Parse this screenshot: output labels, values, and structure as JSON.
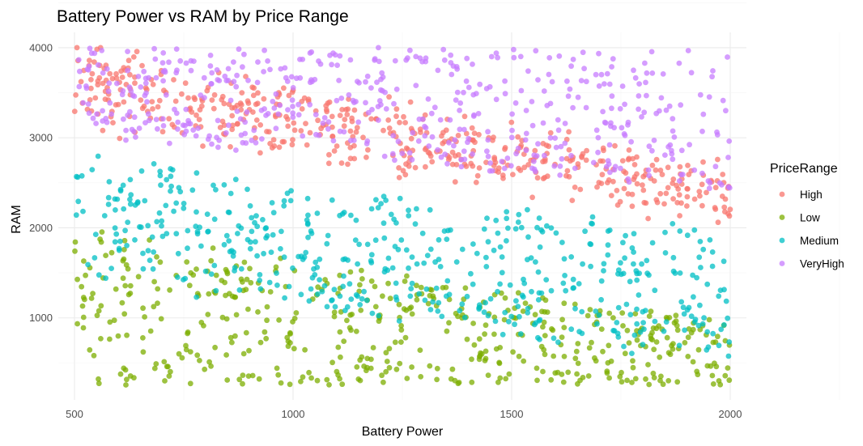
{
  "chart_data": {
    "type": "scatter",
    "title": "Battery Power vs RAM by Price Range",
    "xlabel": "Battery Power",
    "ylabel": "RAM",
    "xlim": [
      463,
      2037
    ],
    "ylim": [
      90,
      4170
    ],
    "x_ticks": [
      500,
      1000,
      1500,
      2000
    ],
    "y_ticks": [
      1000,
      2000,
      3000,
      4000
    ],
    "grid": true,
    "legend": {
      "title": "PriceRange",
      "position": "right"
    },
    "series": [
      {
        "name": "High",
        "color": "#F8766D",
        "ram_band": [
          2100,
          4000
        ],
        "count": 500,
        "seed": 11
      },
      {
        "name": "Low",
        "color": "#7CAE00",
        "ram_band": [
          256,
          2000
        ],
        "count": 500,
        "seed": 23
      },
      {
        "name": "Medium",
        "color": "#00BFC4",
        "ram_band": [
          700,
          2800
        ],
        "count": 500,
        "seed": 37
      },
      {
        "name": "VeryHigh",
        "color": "#C77CFF",
        "ram_band": [
          2400,
          4000
        ],
        "count": 500,
        "seed": 53
      }
    ],
    "x_range": [
      500,
      2000
    ]
  }
}
